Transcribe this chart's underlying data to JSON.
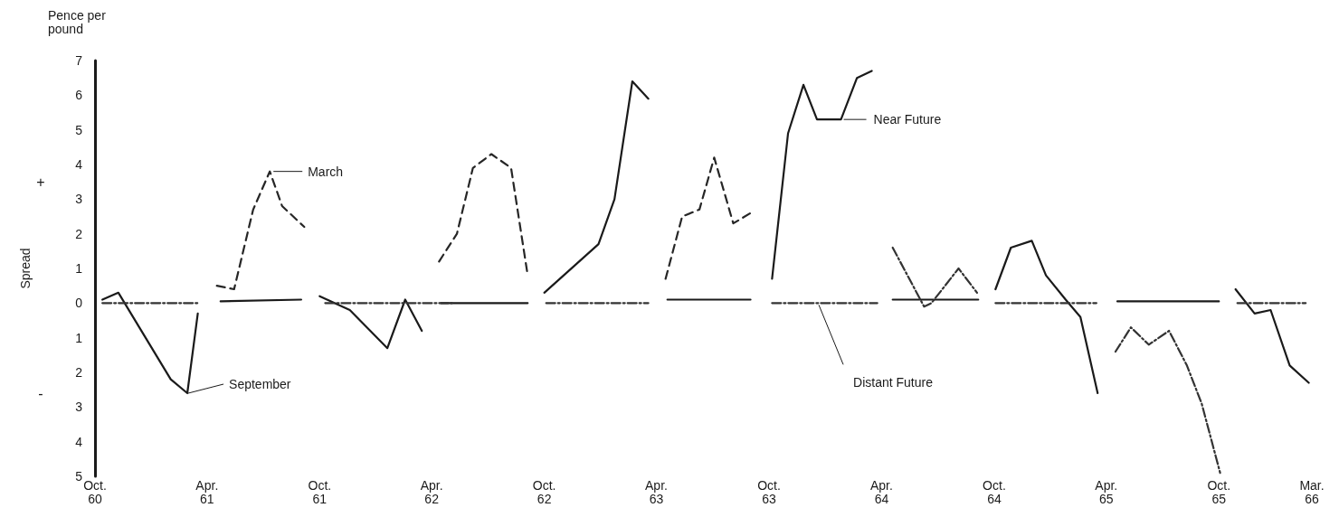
{
  "chart_data": {
    "type": "line",
    "title": "Pence per pound",
    "ylabel": "Spread",
    "xlim": [
      "1960-10",
      "1966-03"
    ],
    "xticks": [
      {
        "value": "1960-10",
        "label": "Oct.\n60"
      },
      {
        "value": "1961-04",
        "label": "Apr.\n61"
      },
      {
        "value": "1961-10",
        "label": "Oct.\n61"
      },
      {
        "value": "1962-04",
        "label": "Apr.\n62"
      },
      {
        "value": "1962-10",
        "label": "Oct.\n62"
      },
      {
        "value": "1963-04",
        "label": "Apr.\n63"
      },
      {
        "value": "1963-10",
        "label": "Oct.\n63"
      },
      {
        "value": "1964-04",
        "label": "Apr.\n64"
      },
      {
        "value": "1964-10",
        "label": "Oct.\n64"
      },
      {
        "value": "1965-04",
        "label": "Apr.\n65"
      },
      {
        "value": "1965-10",
        "label": "Oct.\n65"
      },
      {
        "value": "1966-03",
        "label": "Mar.\n66"
      }
    ],
    "ylim": [
      -5,
      7
    ],
    "yticks": [
      {
        "value": -5,
        "label": "5"
      },
      {
        "value": -4,
        "label": "4"
      },
      {
        "value": -3,
        "label": "3"
      },
      {
        "value": -2,
        "label": "2"
      },
      {
        "value": -1,
        "label": "1"
      },
      0,
      1,
      2,
      3,
      4,
      5,
      6,
      7
    ],
    "marker": "none",
    "series": [
      {
        "color": "#1a1a1a",
        "line_style": "solid",
        "x": [
          "1960-10-13",
          "1960-11-08",
          "1961-02-01",
          "1961-02-28",
          "1961-03-17",
          "1961-04-01",
          "1961-04-23",
          "1961-09-01",
          "1961-09-15",
          "1961-10-01",
          "1961-11-19",
          "1962-01-19",
          "1962-02-17",
          "1962-03-16",
          "1962-04-01",
          "1962-04-16",
          "1962-09-04",
          "1962-09-15",
          "1962-10-01",
          "1962-12-28",
          "1963-01-23",
          "1963-02-21",
          "1963-03-19",
          "1963-04-01",
          "1963-04-19",
          "1963-09-01",
          "1963-09-15",
          "1963-10-06",
          "1963-11-01",
          "1963-11-26",
          "1963-12-18",
          "1964-01-26",
          "1964-02-21",
          "1964-03-16",
          "1964-04-01",
          "1964-04-19",
          "1964-09-05",
          "1964-09-20",
          "1964-10-03",
          "1964-10-28",
          "1964-12-01",
          "1964-12-24",
          "1965-01-25",
          "1965-02-18",
          "1965-03-18",
          "1965-04-01",
          "1965-04-19",
          "1965-10-01",
          "1965-10-15",
          "1965-10-28",
          "1965-11-28",
          "1965-12-24",
          "1966-01-24",
          "1966-02-24"
        ],
        "values": [
          0.1,
          0.3,
          -2.2,
          -2.6,
          -0.3,
          null,
          0.05,
          0.1,
          null,
          0.2,
          -0.2,
          -1.3,
          0.1,
          -0.8,
          null,
          0,
          0,
          null,
          0.3,
          1.7,
          3,
          6.4,
          5.9,
          null,
          0.1,
          0.1,
          null,
          0.7,
          4.9,
          6.3,
          5.3,
          5.3,
          6.5,
          6.7,
          null,
          0.1,
          0.1,
          null,
          0.4,
          1.6,
          1.8,
          0.8,
          0.1,
          -0.4,
          -2.6,
          null,
          0.05,
          0.05,
          null,
          0.4,
          -0.3,
          -0.2,
          -1.8,
          -2.3
        ]
      },
      {
        "color": "#262626",
        "line_style": "dashed",
        "x": [
          "1961-04-17",
          "1961-05-15",
          "1961-06-15",
          "1961-07-12",
          "1961-08-01",
          "1961-09-06",
          "1961-10-01",
          "1962-04-13",
          "1962-05-12",
          "1962-06-07",
          "1962-07-07",
          "1962-08-08",
          "1962-09-04",
          "1962-10-01",
          "1963-04-16",
          "1963-05-13",
          "1963-06-10",
          "1963-07-04",
          "1963-08-04",
          "1963-09-01"
        ],
        "values": [
          0.5,
          0.4,
          2.7,
          3.8,
          2.8,
          2.2,
          null,
          1.2,
          2,
          3.9,
          4.3,
          3.9,
          0.8,
          null,
          0.7,
          2.5,
          2.7,
          4.2,
          2.3,
          2.6
        ]
      },
      {
        "color": "#333333",
        "line_style": "dashdot",
        "x": [
          "1960-10-13",
          "1961-03-18",
          "1961-04-01",
          "1961-10-10",
          "1962-05-04",
          "1962-05-20",
          "1962-10-04",
          "1963-03-19",
          "1963-04-01",
          "1963-10-06",
          "1964-03-25",
          "1964-04-05",
          "1964-04-19",
          "1964-06-09",
          "1964-06-21",
          "1964-08-04",
          "1964-09-03",
          "1964-09-20",
          "1964-10-03",
          "1965-03-16",
          "1965-04-01",
          "1965-04-16",
          "1965-05-11",
          "1965-06-09",
          "1965-07-12",
          "1965-08-10",
          "1965-09-03",
          "1965-10-03",
          "1965-10-15",
          "1965-10-31",
          "1966-02-19"
        ],
        "values": [
          0,
          0,
          null,
          0,
          0,
          null,
          0,
          0,
          null,
          0,
          0,
          null,
          1.6,
          -0.1,
          0,
          1,
          0.3,
          null,
          0,
          0,
          null,
          -1.4,
          -0.7,
          -1.2,
          -0.8,
          -1.8,
          -2.9,
          -4.9,
          null,
          0,
          0
        ]
      }
    ],
    "annotations": [
      "+",
      "-",
      {
        "text": "September",
        "x": "1961-02-28",
        "y": -2.6
      },
      {
        "text": "March",
        "x": "1961-07-12",
        "y": 3.8
      },
      {
        "text": "Near Future",
        "x": "1964-01-26",
        "y": 5.3
      },
      {
        "text": "Distant Future",
        "x": "1963-12-21",
        "y": 0
      }
    ]
  }
}
